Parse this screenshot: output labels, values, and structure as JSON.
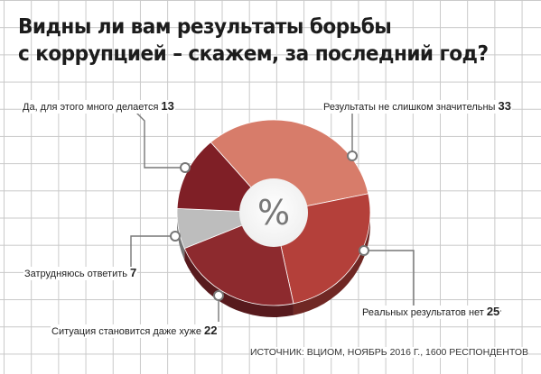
{
  "title_line1": "Видны ли вам результаты борьбы",
  "title_line2": "с коррупцией – скажем, за последний год?",
  "center_symbol": "%",
  "source": "ИСТОЧНИК: ВЦИОМ, НОЯБРЬ 2016 Г., 1600 РЕСПОНДЕНТОВ",
  "chart_data": {
    "type": "pie",
    "title": "Видны ли вам результаты борьбы с коррупцией – скажем, за последний год?",
    "slices": [
      {
        "label": "Результаты не слишком значительны",
        "value": 33,
        "value_text": "33",
        "color": "#d77c6a"
      },
      {
        "label": "Реальных результатов нет",
        "value": 25,
        "value_text": "25",
        "color": "#b4403a"
      },
      {
        "label": "Ситуация становится даже хуже",
        "value": 22,
        "value_text": "22",
        "color": "#8d2a2e"
      },
      {
        "label": "Затрудняюсь ответить",
        "value": 7,
        "value_text": "7",
        "color": "#bdbdbd"
      },
      {
        "label": "Да, для этого много делается",
        "value": 13,
        "value_text": "13",
        "color": "#7f1f26"
      }
    ],
    "style": "donut-3d"
  }
}
